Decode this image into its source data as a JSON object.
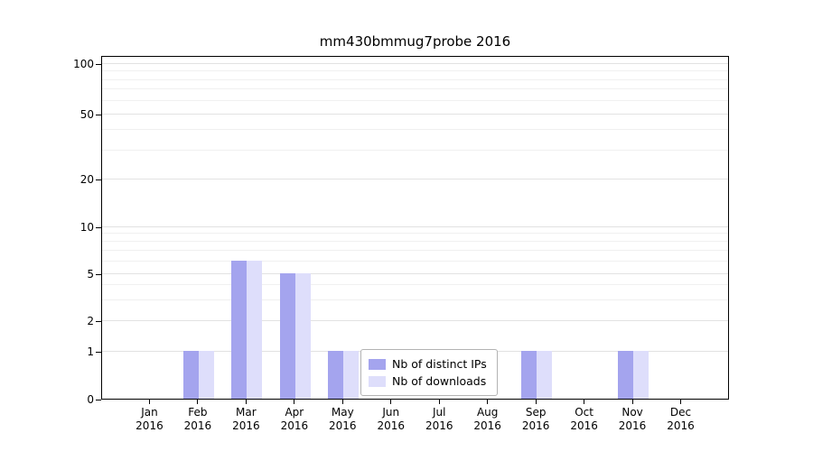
{
  "chart_data": {
    "type": "bar",
    "title": "mm430bmmug7probe 2016",
    "categories": [
      "Jan 2016",
      "Feb 2016",
      "Mar 2016",
      "Apr 2016",
      "May 2016",
      "Jun 2016",
      "Jul 2016",
      "Aug 2016",
      "Sep 2016",
      "Oct 2016",
      "Nov 2016",
      "Dec 2016"
    ],
    "series": [
      {
        "name": "Nb of distinct IPs",
        "color": "#a4a4ee",
        "values": [
          0,
          1,
          6,
          5,
          1,
          0,
          0,
          0,
          1,
          0,
          1,
          0
        ]
      },
      {
        "name": "Nb of downloads",
        "color": "#dedefb",
        "values": [
          0,
          1,
          6,
          5,
          1,
          0,
          0,
          0,
          1,
          0,
          1,
          0
        ]
      }
    ],
    "yticks": [
      0,
      1,
      2,
      5,
      10,
      20,
      50,
      100
    ],
    "minor_yticks": [
      3,
      4,
      6,
      7,
      8,
      9,
      30,
      40,
      60,
      70,
      80,
      90
    ],
    "xlabel": "",
    "ylabel": "",
    "scale": "symlog",
    "ylim": [
      0,
      100
    ],
    "grid": true,
    "legend_position": "lower-center"
  }
}
